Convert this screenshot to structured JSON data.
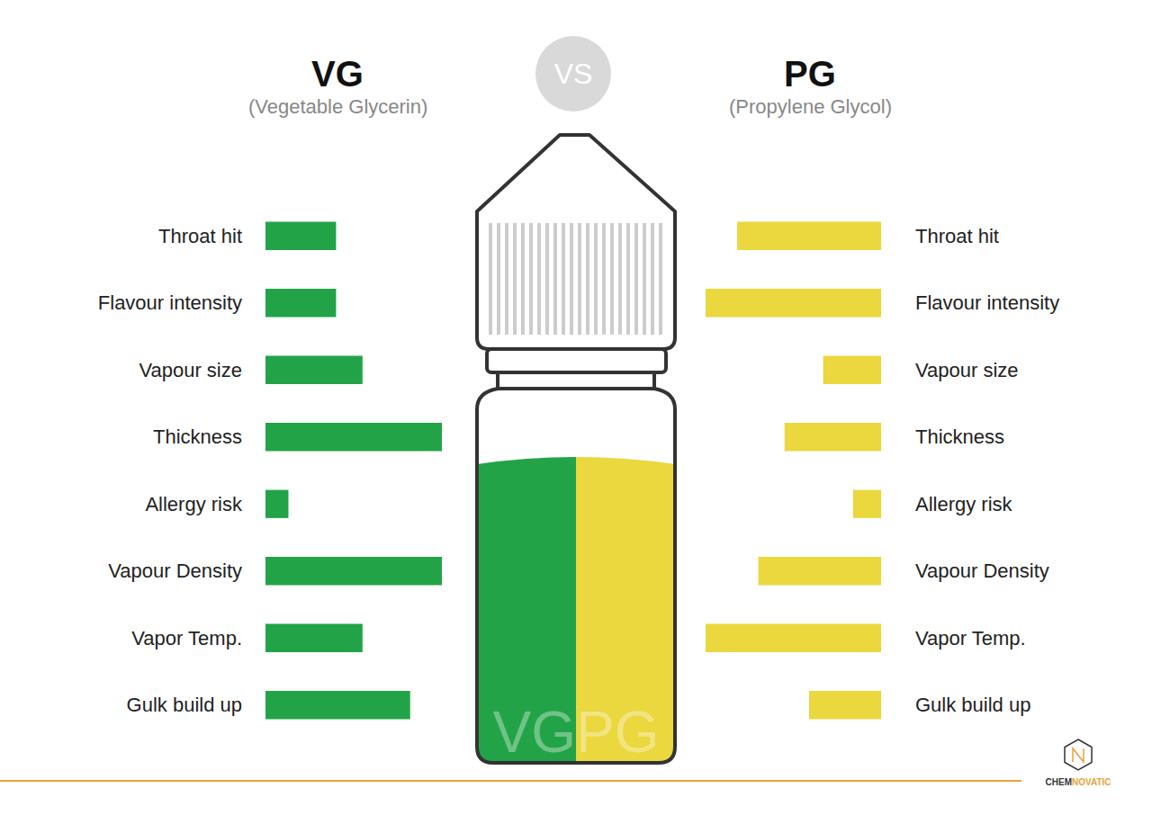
{
  "chart_data": [
    {
      "type": "bar",
      "orientation": "horizontal",
      "title": "VG",
      "subtitle": "(Vegetable Glycerin)",
      "categories": [
        "Throat hit",
        "Flavour intensity",
        "Vapour size",
        "Thickness",
        "Allergy risk",
        "Vapour Density",
        "Vapor Temp.",
        "Gulk build up"
      ],
      "values": [
        4,
        4,
        5.5,
        10,
        1.3,
        10,
        5.5,
        8.2
      ],
      "color": "#23a348",
      "xlim": [
        0,
        10
      ],
      "tick_labels": "y",
      "grid": false
    },
    {
      "type": "bar",
      "orientation": "horizontal",
      "title": "PG",
      "subtitle": "(Propylene Glycol)",
      "categories": [
        "Throat hit",
        "Flavour intensity",
        "Vapour size",
        "Thickness",
        "Allergy risk",
        "Vapour Density",
        "Vapor Temp.",
        "Gulk build up"
      ],
      "values": [
        8.2,
        10,
        3.3,
        5.5,
        1.6,
        7,
        10,
        4.1
      ],
      "color": "#ebd73e",
      "xlim": [
        10,
        0
      ],
      "tick_labels": "y",
      "grid": false
    }
  ],
  "vs_label": "VS",
  "bottle_label": "VGPG",
  "brand": [
    "CHEM",
    "NOVATIC"
  ]
}
